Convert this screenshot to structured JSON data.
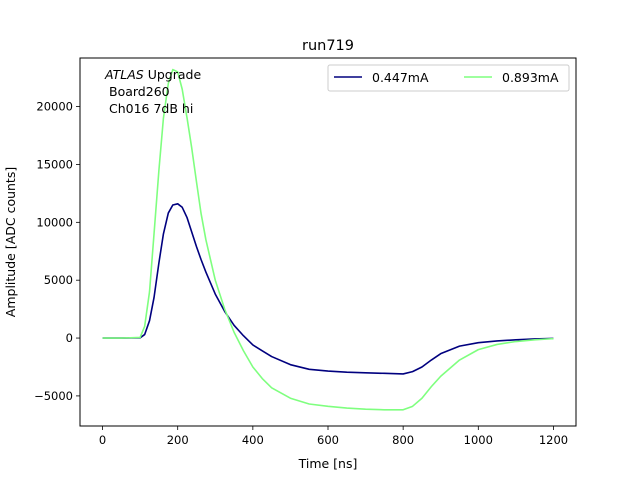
{
  "chart_data": {
    "type": "line",
    "title": "run719",
    "xlabel": "Time [ns]",
    "ylabel": "Amplitude [ADC counts]",
    "xlim": [
      -60,
      1260
    ],
    "ylim": [
      -7600,
      24200
    ],
    "xticks": [
      0,
      200,
      400,
      600,
      800,
      1000,
      1200
    ],
    "yticks": [
      -5000,
      0,
      5000,
      10000,
      15000,
      20000
    ],
    "xtick_labels": [
      "0",
      "200",
      "400",
      "600",
      "800",
      "1000",
      "1200"
    ],
    "ytick_labels": [
      "−5000",
      "0",
      "5000",
      "10000",
      "15000",
      "20000"
    ],
    "grid": false,
    "legend_position": "top-right",
    "annotation": {
      "atlas": "ATLAS",
      "upgrade": " Upgrade",
      "line2": "Board260",
      "line3": "Ch016 7dB hi"
    },
    "series": [
      {
        "name": "0.447mA",
        "color": "#00007f",
        "x": [
          0,
          50,
          100,
          112,
          125,
          137,
          150,
          162,
          175,
          187,
          200,
          212,
          225,
          237,
          250,
          262,
          275,
          300,
          325,
          350,
          375,
          400,
          425,
          450,
          500,
          550,
          600,
          650,
          700,
          750,
          800,
          825,
          850,
          875,
          900,
          950,
          1000,
          1050,
          1100,
          1150,
          1200
        ],
        "y": [
          0,
          0,
          20,
          300,
          1500,
          3500,
          6500,
          9000,
          10800,
          11500,
          11600,
          11300,
          10400,
          9200,
          7900,
          6800,
          5700,
          3800,
          2300,
          1100,
          200,
          -600,
          -1100,
          -1600,
          -2300,
          -2700,
          -2850,
          -2950,
          -3000,
          -3050,
          -3100,
          -2900,
          -2500,
          -1900,
          -1350,
          -700,
          -400,
          -250,
          -150,
          -80,
          -30
        ]
      },
      {
        "name": "0.893mA",
        "color": "#7fff7f",
        "x": [
          0,
          50,
          100,
          112,
          125,
          137,
          150,
          162,
          175,
          187,
          200,
          212,
          225,
          237,
          250,
          262,
          275,
          300,
          325,
          350,
          375,
          400,
          425,
          450,
          500,
          550,
          600,
          650,
          700,
          750,
          800,
          825,
          850,
          875,
          900,
          950,
          1000,
          1050,
          1100,
          1150,
          1200
        ],
        "y": [
          0,
          0,
          50,
          1000,
          4000,
          9000,
          14500,
          19000,
          22000,
          23200,
          23000,
          21500,
          19000,
          16500,
          13500,
          10800,
          8500,
          5000,
          2500,
          500,
          -1100,
          -2500,
          -3500,
          -4300,
          -5200,
          -5700,
          -5900,
          -6050,
          -6150,
          -6200,
          -6200,
          -5900,
          -5200,
          -4200,
          -3300,
          -1900,
          -1000,
          -550,
          -300,
          -150,
          -50
        ]
      }
    ]
  }
}
